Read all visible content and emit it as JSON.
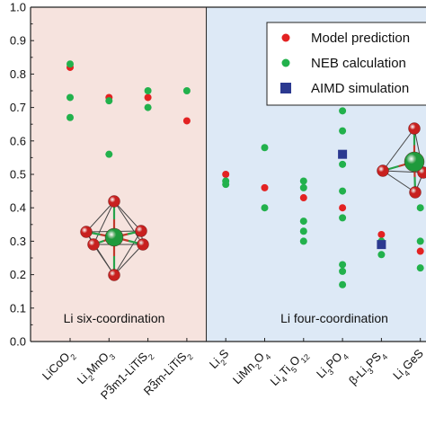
{
  "chart_data": {
    "type": "scatter",
    "title": "",
    "xlabel": "",
    "ylabel": "",
    "ylim": [
      0.0,
      1.0
    ],
    "yticks": [
      "0.0",
      "0.1",
      "0.2",
      "0.3",
      "0.4",
      "0.5",
      "0.6",
      "0.7",
      "0.8",
      "0.9",
      "1.0"
    ],
    "grid": false,
    "legend_position": "top-right",
    "categories": [
      {
        "id": "LiCoO2",
        "base": "LiCoO",
        "parts": [
          [
            "LiCoO",
            "n"
          ],
          [
            "2",
            "sub"
          ]
        ]
      },
      {
        "id": "Li2MnO3",
        "parts": [
          [
            "Li",
            "n"
          ],
          [
            "2",
            "sub"
          ],
          [
            "MnO",
            "n"
          ],
          [
            "3",
            "sub"
          ]
        ]
      },
      {
        "id": "P-3m1-LiTiS2",
        "parts": [
          [
            "P3m1-LiTiS",
            "n"
          ],
          [
            "2",
            "sub"
          ]
        ],
        "overbar_char": 1
      },
      {
        "id": "R-3m-LiTiS2",
        "parts": [
          [
            "R3m-LiTiS",
            "n"
          ],
          [
            "2",
            "sub"
          ]
        ],
        "overbar_char": 1
      },
      {
        "id": "Li2S",
        "parts": [
          [
            "Li",
            "n"
          ],
          [
            "2",
            "sub"
          ],
          [
            "S",
            "n"
          ]
        ]
      },
      {
        "id": "LiMn2O4",
        "parts": [
          [
            "LiMn",
            "n"
          ],
          [
            "2",
            "sub"
          ],
          [
            "O",
            "n"
          ],
          [
            "4",
            "sub"
          ]
        ]
      },
      {
        "id": "Li4Ti5O12",
        "parts": [
          [
            "Li",
            "n"
          ],
          [
            "4",
            "sub"
          ],
          [
            "Ti",
            "n"
          ],
          [
            "5",
            "sub"
          ],
          [
            "O",
            "n"
          ],
          [
            "12",
            "sub"
          ]
        ]
      },
      {
        "id": "Li3PO4",
        "parts": [
          [
            "Li",
            "n"
          ],
          [
            "3",
            "sub"
          ],
          [
            "PO",
            "n"
          ],
          [
            "4",
            "sub"
          ]
        ]
      },
      {
        "id": "beta-Li3PS4",
        "parts": [
          [
            "β-Li",
            "n"
          ],
          [
            "3",
            "sub"
          ],
          [
            "PS",
            "n"
          ],
          [
            "4",
            "sub"
          ]
        ]
      },
      {
        "id": "Li4GeS4",
        "parts": [
          [
            "Li",
            "n"
          ],
          [
            "4",
            "sub"
          ],
          [
            "GeS",
            "n"
          ]
        ]
      }
    ],
    "regions": [
      {
        "label": "Li six-coordination",
        "from_index": 0,
        "to_index": 3,
        "fill": "#f6e3de"
      },
      {
        "label": "Li four-coordination",
        "from_index": 4,
        "to_index": 9,
        "fill": "#dde9f6"
      }
    ],
    "series": [
      {
        "name": "Model prediction",
        "marker": "circle",
        "color": "#e32222",
        "points": [
          {
            "cat": 0,
            "y": 0.82
          },
          {
            "cat": 1,
            "y": 0.73
          },
          {
            "cat": 2,
            "y": 0.73
          },
          {
            "cat": 3,
            "y": 0.66
          },
          {
            "cat": 4,
            "y": 0.5
          },
          {
            "cat": 5,
            "y": 0.46
          },
          {
            "cat": 6,
            "y": 0.43
          },
          {
            "cat": 7,
            "y": 0.4
          },
          {
            "cat": 8,
            "y": 0.32
          },
          {
            "cat": 9,
            "y": 0.27
          }
        ]
      },
      {
        "name": "NEB calculation",
        "marker": "circle",
        "color": "#22b14c",
        "points": [
          {
            "cat": 0,
            "y": 0.83
          },
          {
            "cat": 0,
            "y": 0.73
          },
          {
            "cat": 0,
            "y": 0.67
          },
          {
            "cat": 1,
            "y": 0.72
          },
          {
            "cat": 1,
            "y": 0.56
          },
          {
            "cat": 2,
            "y": 0.75
          },
          {
            "cat": 2,
            "y": 0.7
          },
          {
            "cat": 3,
            "y": 0.75
          },
          {
            "cat": 4,
            "y": 0.48
          },
          {
            "cat": 4,
            "y": 0.47
          },
          {
            "cat": 5,
            "y": 0.58
          },
          {
            "cat": 5,
            "y": 0.4
          },
          {
            "cat": 6,
            "y": 0.48
          },
          {
            "cat": 6,
            "y": 0.46
          },
          {
            "cat": 6,
            "y": 0.36
          },
          {
            "cat": 6,
            "y": 0.33
          },
          {
            "cat": 6,
            "y": 0.3
          },
          {
            "cat": 7,
            "y": 0.69
          },
          {
            "cat": 7,
            "y": 0.63
          },
          {
            "cat": 7,
            "y": 0.53
          },
          {
            "cat": 7,
            "y": 0.45
          },
          {
            "cat": 7,
            "y": 0.37
          },
          {
            "cat": 7,
            "y": 0.23
          },
          {
            "cat": 7,
            "y": 0.21
          },
          {
            "cat": 7,
            "y": 0.17
          },
          {
            "cat": 8,
            "y": 0.3
          },
          {
            "cat": 8,
            "y": 0.26
          },
          {
            "cat": 9,
            "y": 0.4
          },
          {
            "cat": 9,
            "y": 0.3
          },
          {
            "cat": 9,
            "y": 0.22
          }
        ]
      },
      {
        "name": "AIMD simulation",
        "marker": "square",
        "color": "#2b3990",
        "points": [
          {
            "cat": 7,
            "y": 0.56
          },
          {
            "cat": 8,
            "y": 0.29
          }
        ]
      }
    ],
    "legend_labels": [
      "Model prediction",
      "NEB calculation",
      "AIMD simulation"
    ],
    "region_labels": [
      "Li six-coordination",
      "Li four-coordination"
    ]
  }
}
